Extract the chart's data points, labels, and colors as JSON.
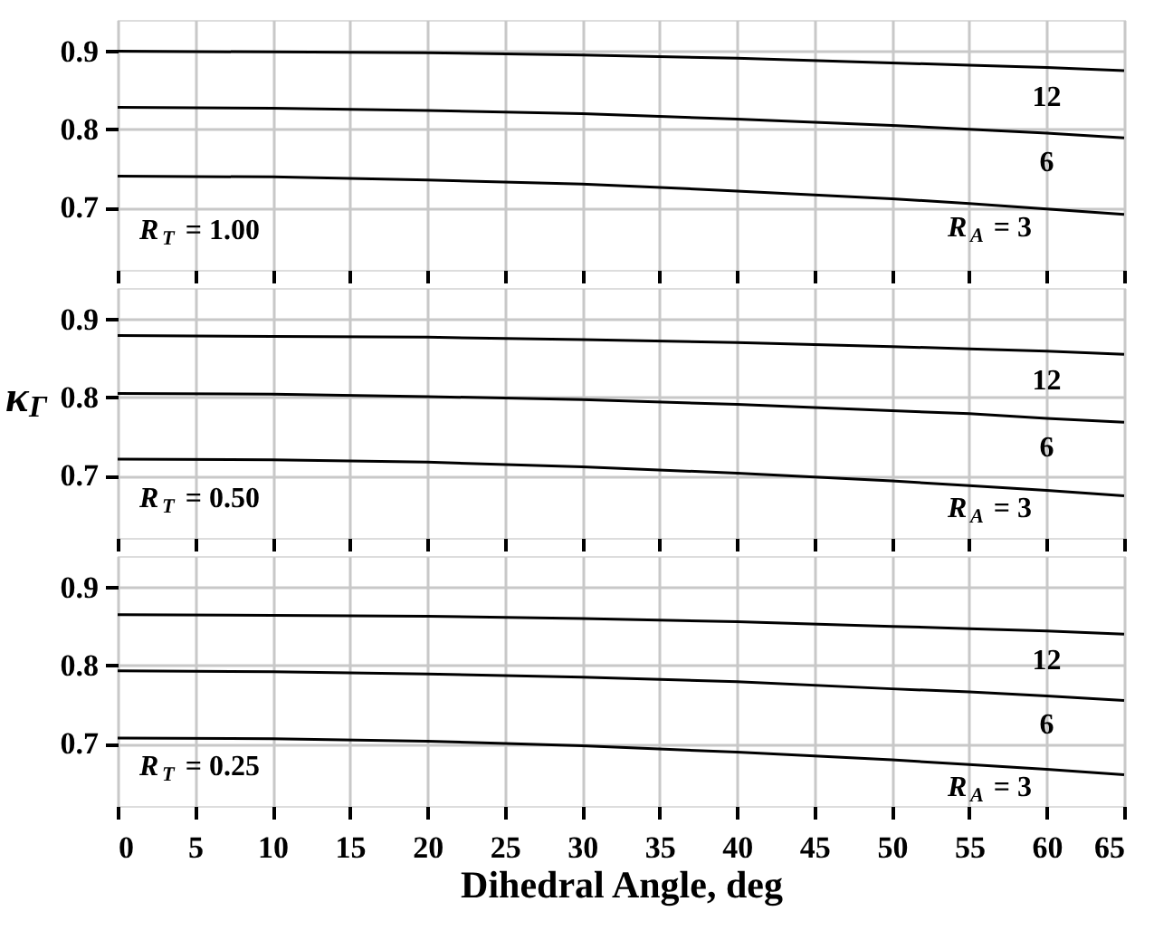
{
  "chart_data": [
    {
      "type": "line",
      "x": [
        0,
        10,
        20,
        30,
        40,
        50,
        55,
        60,
        65
      ],
      "xlim": [
        0,
        65
      ],
      "xticks": [
        0,
        5,
        10,
        15,
        20,
        25,
        30,
        35,
        40,
        45,
        50,
        55,
        60,
        65
      ],
      "ylim": [
        0.62,
        0.94
      ],
      "yticks": [
        0.7,
        0.8,
        0.9
      ],
      "grid": true,
      "tick_labels": "y",
      "series": [
        {
          "name": "12",
          "color": "#000000",
          "values": [
            0.9,
            0.899,
            0.898,
            0.895,
            0.891,
            0.885,
            0.882,
            0.879,
            0.875
          ]
        },
        {
          "name": "6",
          "color": "#000000",
          "values": [
            0.828,
            0.827,
            0.824,
            0.82,
            0.813,
            0.805,
            0.8,
            0.795,
            0.789
          ]
        },
        {
          "name": "R$_{A}$ = 3",
          "color": "#000000",
          "values": [
            0.74,
            0.739,
            0.735,
            0.73,
            0.721,
            0.711,
            0.705,
            0.698,
            0.691
          ]
        }
      ],
      "annotations": [
        "R$_{T}$ = 1.00"
      ]
    },
    {
      "type": "line",
      "x": [
        0,
        10,
        20,
        30,
        40,
        50,
        55,
        60,
        65
      ],
      "xlim": [
        0,
        65
      ],
      "xticks": [
        0,
        5,
        10,
        15,
        20,
        25,
        30,
        35,
        40,
        45,
        50,
        55,
        60,
        65
      ],
      "ylim": [
        0.62,
        0.94
      ],
      "yticks": [
        0.7,
        0.8,
        0.9
      ],
      "grid": true,
      "tick_labels": "y",
      "ylabel": "κ$_{Γ}$",
      "series": [
        {
          "name": "12",
          "color": "#000000",
          "values": [
            0.879,
            0.878,
            0.877,
            0.874,
            0.87,
            0.865,
            0.862,
            0.859,
            0.855
          ]
        },
        {
          "name": "6",
          "color": "#000000",
          "values": [
            0.805,
            0.804,
            0.801,
            0.797,
            0.791,
            0.783,
            0.779,
            0.773,
            0.768
          ]
        },
        {
          "name": "R$_{A}$ = 3",
          "color": "#000000",
          "values": [
            0.721,
            0.72,
            0.717,
            0.711,
            0.703,
            0.693,
            0.687,
            0.681,
            0.674
          ]
        }
      ],
      "annotations": [
        "R$_{T}$ = 0.50"
      ]
    },
    {
      "type": "line",
      "x": [
        0,
        10,
        20,
        30,
        40,
        50,
        55,
        60,
        65
      ],
      "xlim": [
        0,
        65
      ],
      "xticks": [
        0,
        5,
        10,
        15,
        20,
        25,
        30,
        35,
        40,
        45,
        50,
        55,
        60,
        65
      ],
      "ylim": [
        0.62,
        0.94
      ],
      "yticks": [
        0.7,
        0.8,
        0.9
      ],
      "grid": true,
      "xlabel": "Dihedral Angle, deg",
      "series": [
        {
          "name": "12",
          "color": "#000000",
          "values": [
            0.865,
            0.864,
            0.863,
            0.86,
            0.856,
            0.85,
            0.847,
            0.844,
            0.84
          ]
        },
        {
          "name": "6",
          "color": "#000000",
          "values": [
            0.793,
            0.792,
            0.789,
            0.785,
            0.779,
            0.77,
            0.766,
            0.761,
            0.755
          ]
        },
        {
          "name": "R$_{A}$ = 3",
          "color": "#000000",
          "values": [
            0.707,
            0.706,
            0.703,
            0.697,
            0.689,
            0.679,
            0.673,
            0.667,
            0.66
          ]
        }
      ],
      "annotations": [
        "R$_{T}$ = 0.25"
      ]
    }
  ]
}
